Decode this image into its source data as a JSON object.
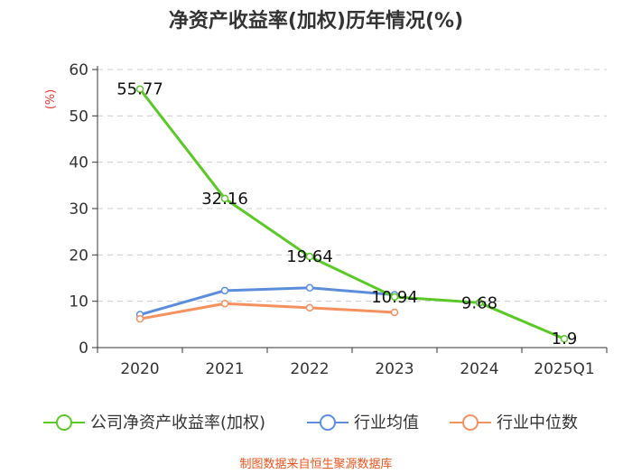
{
  "chart_data": {
    "type": "line",
    "title": "净资产收益率(加权)历年情况(%)",
    "ylabel": "(%)",
    "categories": [
      "2020",
      "2021",
      "2022",
      "2023",
      "2024",
      "2025Q1"
    ],
    "ylim": [
      0,
      60
    ],
    "yticks": [
      0,
      10,
      20,
      30,
      40,
      50,
      60
    ],
    "grid": "horizontal-dashed",
    "legend_position": "bottom",
    "series": [
      {
        "name": "公司净资产收益率(加权)",
        "color": "#5ac827",
        "values": [
          55.77,
          32.16,
          19.64,
          10.94,
          9.68,
          1.9
        ],
        "labels": [
          "55.77",
          "32.16",
          "19.64",
          "10.94",
          "9.68",
          "1.9"
        ]
      },
      {
        "name": "行业均值",
        "color": "#5b8ddc",
        "values": [
          7.1,
          12.3,
          12.9,
          11.4,
          null,
          null
        ]
      },
      {
        "name": "行业中位数",
        "color": "#f4915f",
        "values": [
          6.2,
          9.5,
          8.6,
          7.6,
          null,
          null
        ]
      }
    ]
  },
  "footer": {
    "source": "制图数据来自恒生聚源数据库"
  }
}
